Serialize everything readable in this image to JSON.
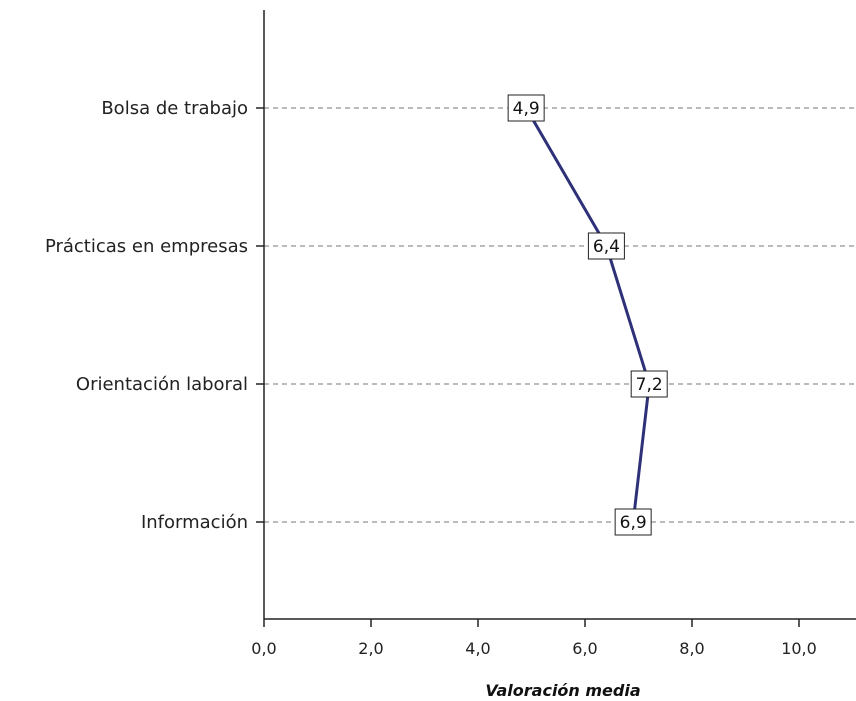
{
  "chart_data": {
    "type": "line",
    "orientation": "horizontal",
    "categories": [
      "Bolsa de trabajo",
      "Prácticas en empresas",
      "Orientación laboral",
      "Información"
    ],
    "values": [
      4.9,
      6.4,
      7.2,
      6.9
    ],
    "data_labels": [
      "4,9",
      "6,4",
      "7,2",
      "6,9"
    ],
    "xlabel": "Valoración media",
    "ylabel": "",
    "xlim": [
      0,
      11
    ],
    "xticks": [
      0,
      2,
      4,
      6,
      8,
      10
    ],
    "xtick_labels": [
      "0,0",
      "2,0",
      "4,0",
      "6,0",
      "8,0",
      "10,0"
    ],
    "grid": "horizontal dashed at categories",
    "line_color": "#2e3178"
  }
}
